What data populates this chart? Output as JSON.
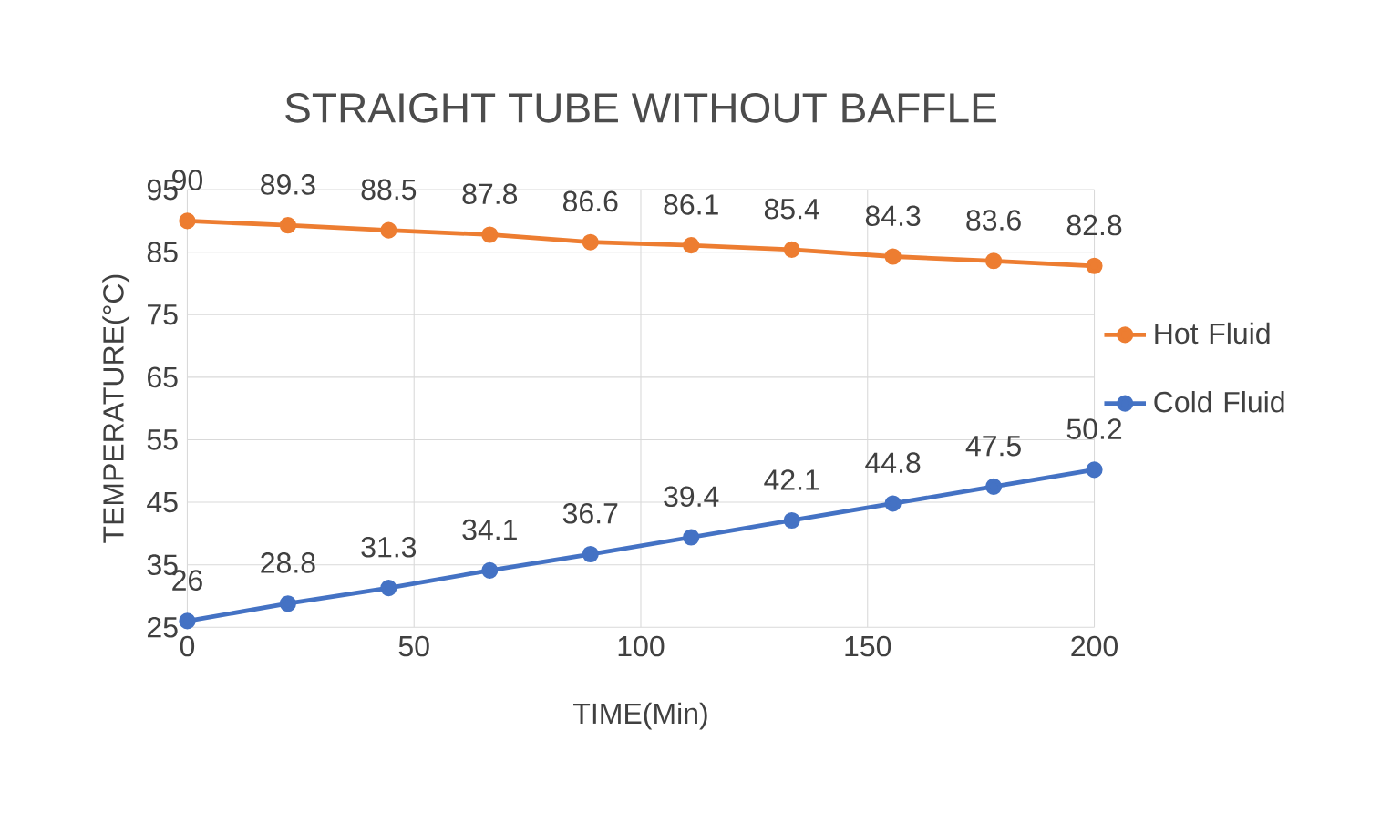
{
  "chart_data": {
    "type": "line",
    "title": "STRAIGHT TUBE WITHOUT BAFFLE",
    "xlabel": "TIME(Min)",
    "ylabel": "TEMPERATURE(°C)",
    "x": [
      0,
      22.2,
      44.4,
      66.7,
      88.9,
      111.1,
      133.3,
      155.6,
      177.8,
      200
    ],
    "series": [
      {
        "name": "Hot Fluid",
        "color": "#ed7d31",
        "values": [
          90,
          89.3,
          88.5,
          87.8,
          86.6,
          86.1,
          85.4,
          84.3,
          83.6,
          82.8
        ]
      },
      {
        "name": "Cold Fluid",
        "color": "#4472c4",
        "values": [
          26,
          28.8,
          31.3,
          34.1,
          36.7,
          39.4,
          42.1,
          44.8,
          47.5,
          50.2
        ]
      }
    ],
    "xlim": [
      0,
      200
    ],
    "xticks": [
      0,
      50,
      100,
      150,
      200
    ],
    "ylim": [
      25,
      95
    ],
    "yticks": [
      25,
      35,
      45,
      55,
      65,
      75,
      85,
      95
    ],
    "grid": true,
    "legend": "right",
    "marker": "circle",
    "line_style": "solid",
    "data_labels": true
  }
}
